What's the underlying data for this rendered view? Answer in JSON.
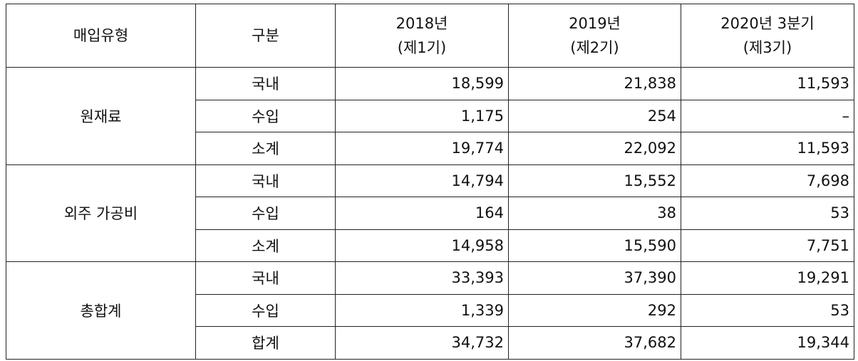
{
  "table": {
    "columns": [
      [
        "매입유형"
      ],
      [
        "구분"
      ],
      [
        "2018년",
        "(제1기)"
      ],
      [
        "2019년",
        "(제2기)"
      ],
      [
        "2020년 3분기",
        "(제3기)"
      ]
    ],
    "groups": [
      {
        "label": "원재료",
        "rows": [
          {
            "label": "국내",
            "values": [
              "18,599",
              "21,838",
              "11,593"
            ]
          },
          {
            "label": "수입",
            "values": [
              "1,175",
              "254",
              "–"
            ]
          },
          {
            "label": "소계",
            "values": [
              "19,774",
              "22,092",
              "11,593"
            ]
          }
        ]
      },
      {
        "label": "외주 가공비",
        "rows": [
          {
            "label": "국내",
            "values": [
              "14,794",
              "15,552",
              "7,698"
            ]
          },
          {
            "label": "수입",
            "values": [
              "164",
              "38",
              "53"
            ]
          },
          {
            "label": "소계",
            "values": [
              "14,958",
              "15,590",
              "7,751"
            ]
          }
        ]
      },
      {
        "label": "총합계",
        "rows": [
          {
            "label": "국내",
            "values": [
              "33,393",
              "37,390",
              "19,291"
            ]
          },
          {
            "label": "수입",
            "values": [
              "1,339",
              "292",
              "53"
            ]
          },
          {
            "label": "합계",
            "values": [
              "34,732",
              "37,682",
              "19,344"
            ]
          }
        ]
      }
    ]
  }
}
